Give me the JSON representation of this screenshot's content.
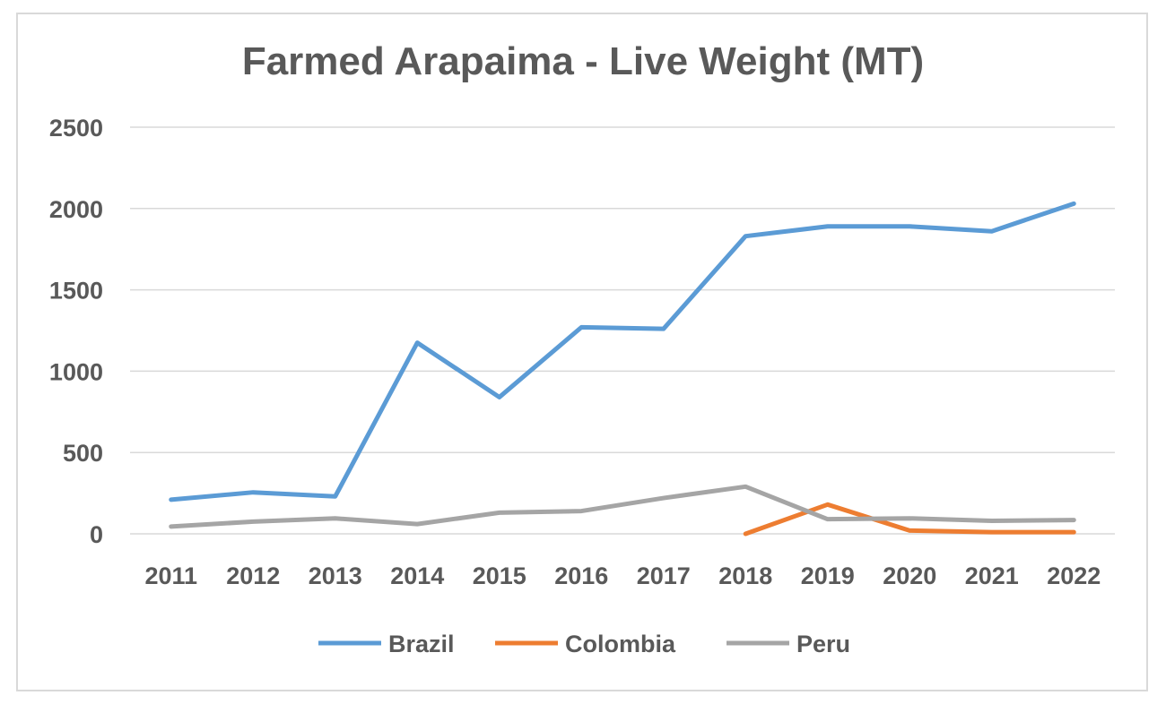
{
  "chart_data": {
    "type": "line",
    "title": "Farmed Arapaima - Live Weight (MT)",
    "xlabel": "",
    "ylabel": "",
    "categories": [
      "2011",
      "2012",
      "2013",
      "2014",
      "2015",
      "2016",
      "2017",
      "2018",
      "2019",
      "2020",
      "2021",
      "2022"
    ],
    "ylim": [
      0,
      2500
    ],
    "yticks": [
      "0",
      "500",
      "1000",
      "1500",
      "2000",
      "2500"
    ],
    "grid": true,
    "legend": "bottom",
    "series": [
      {
        "name": "Brazil",
        "color": "#5b9bd5",
        "values": [
          210,
          255,
          230,
          1175,
          840,
          1270,
          1260,
          1830,
          1890,
          1890,
          1860,
          2030
        ]
      },
      {
        "name": "Colombia",
        "color": "#ed7d31",
        "values": [
          null,
          null,
          null,
          null,
          null,
          null,
          null,
          0,
          180,
          20,
          10,
          10
        ]
      },
      {
        "name": "Peru",
        "color": "#a5a5a5",
        "values": [
          45,
          75,
          95,
          60,
          130,
          140,
          220,
          290,
          90,
          95,
          80,
          85
        ]
      }
    ]
  }
}
